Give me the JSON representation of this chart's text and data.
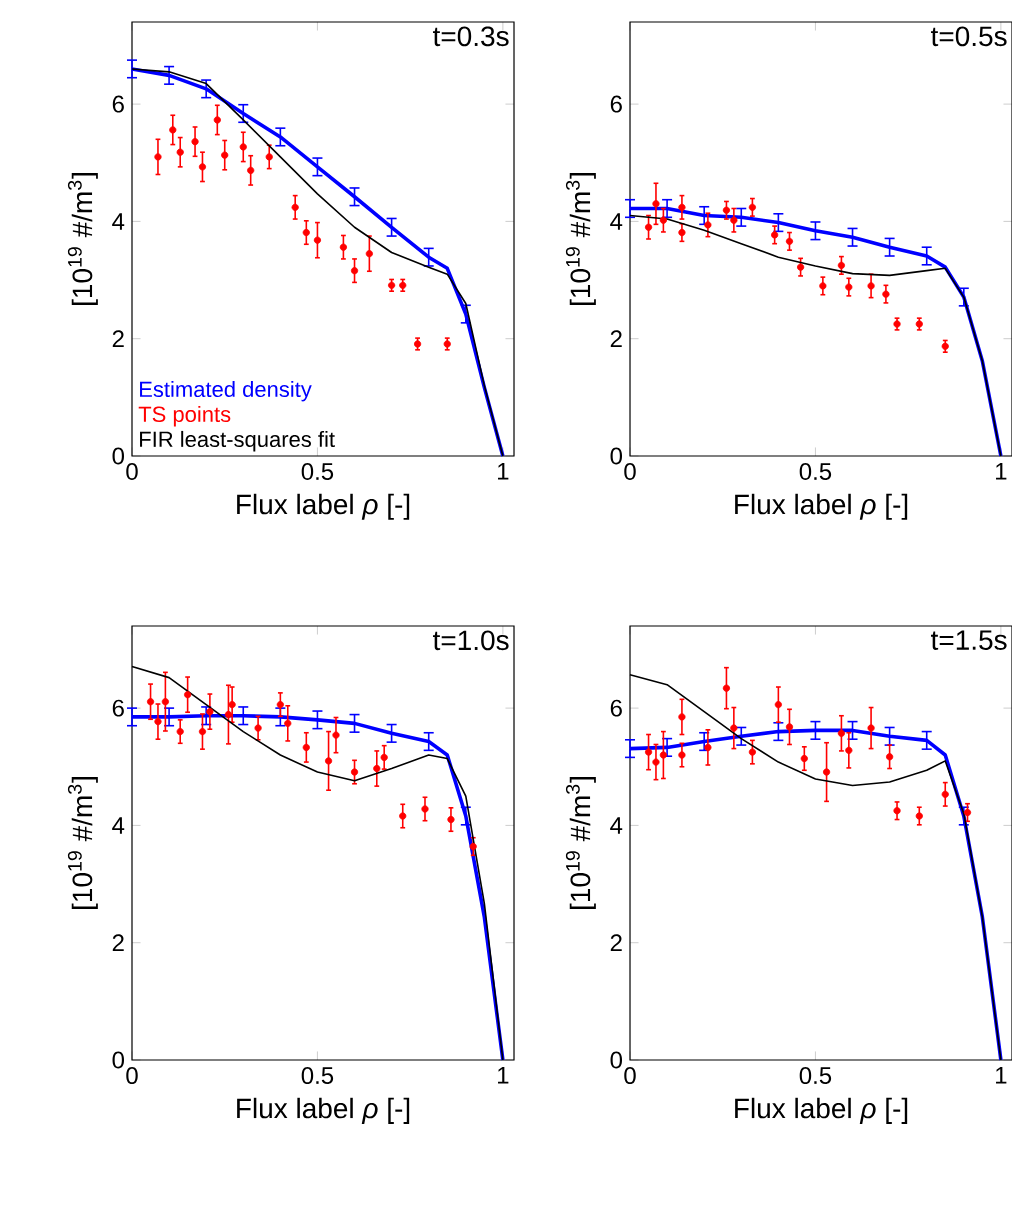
{
  "chart_data": [
    {
      "type": "line",
      "annotations": [
        "t=0.3s"
      ],
      "xlabel": "Flux label *ρ* [-]",
      "ylabel": "[10$^{19}$ #/m$^{3}$]",
      "xlim": [
        0,
        1.03
      ],
      "ylim": [
        0,
        7.4
      ],
      "xticks": [
        0,
        0.5,
        1
      ],
      "yticks": [
        0,
        2,
        4,
        6
      ],
      "legend": "bottom left",
      "series": [
        {
          "name": "Estimated density",
          "type": "line",
          "color": "#0000ff",
          "x": [
            0,
            0.1,
            0.2,
            0.3,
            0.4,
            0.5,
            0.6,
            0.7,
            0.8,
            0.85,
            0.9,
            0.95,
            1.0
          ],
          "values": [
            6.6,
            6.49,
            6.26,
            5.84,
            5.44,
            4.93,
            4.42,
            3.9,
            3.39,
            3.2,
            2.42,
            1.17,
            0
          ],
          "errors": [
            0.15,
            0.15,
            0.15,
            0.15,
            0.15,
            0.15,
            0.15,
            0.15,
            0.15,
            null,
            0.15,
            null,
            null
          ]
        },
        {
          "name": "TS points",
          "type": "scatter",
          "marker": "circle",
          "color": "#ff0000",
          "x": [
            0.07,
            0.11,
            0.13,
            0.17,
            0.19,
            0.23,
            0.25,
            0.3,
            0.32,
            0.37,
            0.44,
            0.47,
            0.5,
            0.57,
            0.6,
            0.64,
            0.7,
            0.73,
            0.77,
            0.85
          ],
          "values": [
            5.1,
            5.56,
            5.18,
            5.36,
            4.93,
            5.73,
            5.13,
            5.27,
            4.87,
            5.1,
            4.24,
            3.81,
            3.68,
            3.56,
            3.16,
            3.45,
            2.91,
            2.91,
            1.91,
            1.91
          ],
          "errors": [
            0.3,
            0.25,
            0.25,
            0.25,
            0.25,
            0.25,
            0.25,
            0.25,
            0.25,
            0.2,
            0.2,
            0.2,
            0.3,
            0.2,
            0.2,
            0.3,
            0.1,
            0.1,
            0.1,
            0.1
          ]
        },
        {
          "name": "FIR least-squares fit",
          "type": "line",
          "color": "#000000",
          "x": [
            0,
            0.1,
            0.2,
            0.3,
            0.4,
            0.5,
            0.6,
            0.7,
            0.8,
            0.85,
            0.9,
            0.95,
            1.0
          ],
          "values": [
            6.6,
            6.55,
            6.35,
            5.73,
            5.1,
            4.47,
            3.9,
            3.47,
            3.22,
            3.1,
            2.6,
            1.2,
            0
          ]
        }
      ]
    },
    {
      "type": "line",
      "annotations": [
        "t=0.5s"
      ],
      "xlabel": "Flux label *ρ* [-]",
      "ylabel": "[10$^{19}$ #/m$^{3}$]",
      "xlim": [
        0,
        1.03
      ],
      "ylim": [
        0,
        7.4
      ],
      "xticks": [
        0,
        0.5,
        1
      ],
      "yticks": [
        0,
        2,
        4,
        6
      ],
      "series": [
        {
          "type": "line",
          "color": "#0000ff",
          "x": [
            0,
            0.1,
            0.2,
            0.3,
            0.4,
            0.5,
            0.6,
            0.7,
            0.8,
            0.85,
            0.9,
            0.95,
            1.0
          ],
          "values": [
            4.22,
            4.22,
            4.1,
            4.07,
            3.98,
            3.84,
            3.73,
            3.56,
            3.41,
            3.22,
            2.71,
            1.62,
            0
          ],
          "errors": [
            0.15,
            0.15,
            0.15,
            0.15,
            0.15,
            0.15,
            0.15,
            0.15,
            0.15,
            null,
            0.15,
            null,
            null
          ]
        },
        {
          "type": "scatter",
          "marker": "circle",
          "color": "#ff0000",
          "x": [
            0.05,
            0.07,
            0.09,
            0.14,
            0.14,
            0.21,
            0.26,
            0.28,
            0.33,
            0.39,
            0.43,
            0.46,
            0.52,
            0.57,
            0.59,
            0.65,
            0.69,
            0.72,
            0.78,
            0.85
          ],
          "values": [
            3.9,
            4.3,
            4.02,
            3.81,
            4.24,
            3.94,
            4.19,
            4.02,
            4.24,
            3.77,
            3.66,
            3.22,
            2.9,
            3.25,
            2.88,
            2.9,
            2.76,
            2.25,
            2.25,
            1.87
          ],
          "errors": [
            0.2,
            0.35,
            0.2,
            0.15,
            0.2,
            0.2,
            0.15,
            0.2,
            0.15,
            0.15,
            0.15,
            0.15,
            0.15,
            0.15,
            0.15,
            0.2,
            0.15,
            0.1,
            0.1,
            0.1
          ]
        },
        {
          "type": "line",
          "color": "#000000",
          "x": [
            0,
            0.1,
            0.2,
            0.3,
            0.4,
            0.5,
            0.6,
            0.7,
            0.8,
            0.85,
            0.9,
            0.95,
            1.0
          ],
          "values": [
            4.1,
            4.04,
            3.85,
            3.62,
            3.39,
            3.24,
            3.11,
            3.08,
            3.16,
            3.2,
            2.71,
            1.62,
            0
          ]
        }
      ]
    },
    {
      "type": "line",
      "annotations": [
        "t=1.0s"
      ],
      "xlabel": "Flux label *ρ* [-]",
      "ylabel": "[10$^{19}$ #/m$^{3}$]",
      "xlim": [
        0,
        1.03
      ],
      "ylim": [
        0,
        7.4
      ],
      "xticks": [
        0,
        0.5,
        1
      ],
      "yticks": [
        0,
        2,
        4,
        6
      ],
      "series": [
        {
          "type": "line",
          "color": "#0000ff",
          "x": [
            0,
            0.1,
            0.2,
            0.3,
            0.4,
            0.5,
            0.6,
            0.7,
            0.8,
            0.85,
            0.9,
            0.95,
            1.0
          ],
          "values": [
            5.85,
            5.85,
            5.87,
            5.87,
            5.85,
            5.8,
            5.74,
            5.57,
            5.43,
            5.2,
            4.16,
            2.44,
            0
          ],
          "errors": [
            0.15,
            0.15,
            0.15,
            0.15,
            0.15,
            0.15,
            0.15,
            0.15,
            0.15,
            null,
            0.15,
            null,
            null
          ]
        },
        {
          "type": "scatter",
          "marker": "circle",
          "color": "#ff0000",
          "x": [
            0.05,
            0.07,
            0.09,
            0.13,
            0.15,
            0.19,
            0.21,
            0.26,
            0.27,
            0.34,
            0.4,
            0.42,
            0.47,
            0.53,
            0.55,
            0.6,
            0.66,
            0.68,
            0.73,
            0.79,
            0.86,
            0.92
          ],
          "values": [
            6.11,
            5.77,
            6.11,
            5.6,
            6.23,
            5.6,
            5.94,
            5.89,
            6.06,
            5.66,
            6.06,
            5.74,
            5.33,
            5.1,
            5.54,
            4.91,
            4.97,
            5.16,
            4.16,
            4.28,
            4.1,
            3.64
          ],
          "errors": [
            0.3,
            0.3,
            0.5,
            0.2,
            0.3,
            0.3,
            0.3,
            0.5,
            0.3,
            0.2,
            0.2,
            0.3,
            0.25,
            0.5,
            0.3,
            0.2,
            0.3,
            0.2,
            0.2,
            0.2,
            0.2,
            0.15
          ]
        },
        {
          "type": "line",
          "color": "#000000",
          "x": [
            0,
            0.1,
            0.2,
            0.3,
            0.4,
            0.5,
            0.6,
            0.7,
            0.8,
            0.85,
            0.9,
            0.95,
            1.0
          ],
          "values": [
            6.71,
            6.52,
            6.06,
            5.6,
            5.2,
            4.91,
            4.76,
            4.97,
            5.2,
            5.14,
            4.5,
            2.67,
            0
          ]
        }
      ]
    },
    {
      "type": "line",
      "annotations": [
        "t=1.5s"
      ],
      "xlabel": "Flux label *ρ* [-]",
      "ylabel": "[10$^{19}$ #/m$^{3}$]",
      "xlim": [
        0,
        1.03
      ],
      "ylim": [
        0,
        7.4
      ],
      "xticks": [
        0,
        0.5,
        1
      ],
      "yticks": [
        0,
        2,
        4,
        6
      ],
      "series": [
        {
          "type": "line",
          "color": "#0000ff",
          "x": [
            0,
            0.1,
            0.2,
            0.3,
            0.4,
            0.5,
            0.6,
            0.7,
            0.8,
            0.85,
            0.9,
            0.95,
            1.0
          ],
          "values": [
            5.31,
            5.33,
            5.43,
            5.52,
            5.6,
            5.62,
            5.62,
            5.52,
            5.45,
            5.2,
            4.16,
            2.44,
            0
          ],
          "errors": [
            0.15,
            0.15,
            0.15,
            0.15,
            0.15,
            0.15,
            0.15,
            0.15,
            0.15,
            null,
            0.15,
            null,
            null
          ]
        },
        {
          "type": "scatter",
          "marker": "circle",
          "color": "#ff0000",
          "x": [
            0.05,
            0.07,
            0.09,
            0.14,
            0.14,
            0.21,
            0.26,
            0.28,
            0.33,
            0.4,
            0.43,
            0.47,
            0.53,
            0.57,
            0.59,
            0.65,
            0.7,
            0.72,
            0.78,
            0.85,
            0.91
          ],
          "values": [
            5.25,
            5.08,
            5.2,
            5.85,
            5.2,
            5.33,
            6.34,
            5.66,
            5.25,
            6.06,
            5.68,
            5.14,
            4.91,
            5.57,
            5.28,
            5.66,
            5.17,
            4.25,
            4.16,
            4.53,
            4.22
          ],
          "errors": [
            0.3,
            0.3,
            0.4,
            0.3,
            0.2,
            0.3,
            0.35,
            0.35,
            0.2,
            0.3,
            0.3,
            0.2,
            0.5,
            0.3,
            0.3,
            0.35,
            0.2,
            0.15,
            0.15,
            0.2,
            0.15
          ]
        },
        {
          "type": "line",
          "color": "#000000",
          "x": [
            0,
            0.1,
            0.2,
            0.3,
            0.4,
            0.5,
            0.6,
            0.7,
            0.8,
            0.85,
            0.9,
            0.95,
            1.0
          ],
          "values": [
            6.57,
            6.4,
            5.94,
            5.48,
            5.08,
            4.79,
            4.68,
            4.74,
            4.94,
            5.1,
            4.2,
            2.44,
            0
          ]
        }
      ]
    }
  ]
}
